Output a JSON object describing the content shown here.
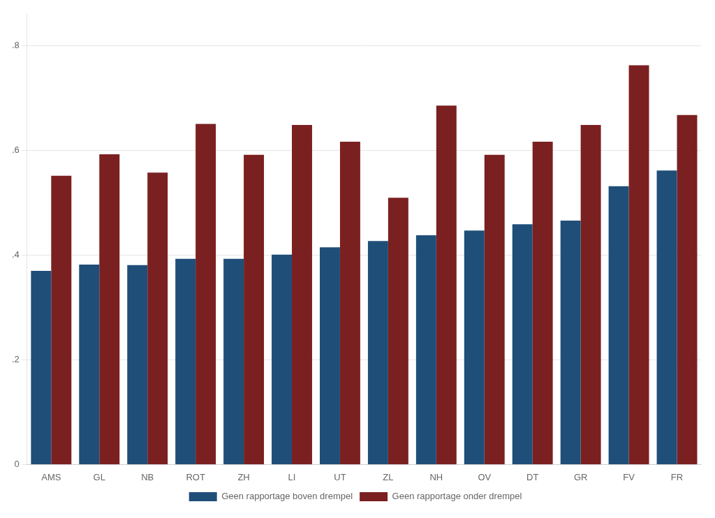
{
  "chart_data": {
    "type": "bar",
    "categories": [
      "AMS",
      "GL",
      "NB",
      "ROT",
      "ZH",
      "LI",
      "UT",
      "ZL",
      "NH",
      "OV",
      "DT",
      "GR",
      "FV",
      "FR"
    ],
    "series": [
      {
        "name": "Geen rapportage boven drempel",
        "color": "#1F4E79",
        "values": [
          0.37,
          0.382,
          0.381,
          0.393,
          0.393,
          0.401,
          0.415,
          0.427,
          0.438,
          0.447,
          0.459,
          0.466,
          0.532,
          0.562
        ]
      },
      {
        "name": "Geen rapportage onder drempel",
        "color": "#7B2020",
        "values": [
          0.552,
          0.593,
          0.558,
          0.651,
          0.592,
          0.649,
          0.617,
          0.51,
          0.686,
          0.592,
          0.617,
          0.649,
          0.763,
          0.668
        ]
      }
    ],
    "ylim": [
      0,
      0.86
    ],
    "yticks": [
      0,
      {
        "value": 0.2,
        "label": ".2"
      },
      {
        "value": 0.4,
        "label": ".4"
      },
      {
        "value": 0.6,
        "label": ".6"
      },
      {
        "value": 0.8,
        "label": ".8"
      }
    ],
    "grid": true,
    "legend": "bottom"
  }
}
